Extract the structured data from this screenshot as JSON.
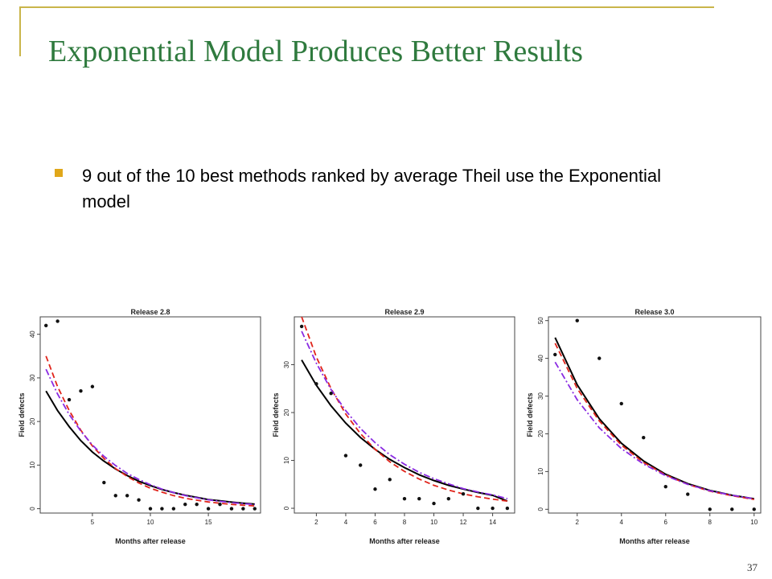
{
  "slide": {
    "title": "Exponential Model Produces Better Results",
    "bullet": "9 out of the 10 best methods ranked by average Theil use the Exponential model",
    "page_number": "37",
    "colors": {
      "title": "#2f7a3e",
      "accent": "#c9b54a",
      "bullet": "#e0a71a"
    }
  },
  "chart_data": [
    {
      "type": "scatter",
      "title": "Release 2.8",
      "xlabel": "Months after release",
      "ylabel": "Field defects",
      "xlim": [
        0.5,
        19.5
      ],
      "ylim": [
        -1,
        44
      ],
      "xticks": [
        5,
        10,
        15
      ],
      "yticks": [
        0,
        10,
        20,
        30,
        40
      ],
      "points": {
        "x": [
          1,
          2,
          3,
          4,
          5,
          6,
          7,
          8,
          9,
          10,
          11,
          12,
          13,
          14,
          15,
          16,
          17,
          18,
          19
        ],
        "y": [
          42,
          43,
          25,
          27,
          28,
          6,
          3,
          3,
          2,
          0,
          0,
          0,
          1,
          1,
          0,
          1,
          0,
          0,
          0
        ]
      },
      "curves": [
        {
          "color": "#000000",
          "style": "solid",
          "values": [
            27.0,
            22.5,
            18.8,
            15.6,
            13.0,
            10.9,
            9.1,
            7.6,
            6.3,
            5.3,
            4.4,
            3.7,
            3.1,
            2.6,
            2.1,
            1.8,
            1.5,
            1.25,
            1.05
          ]
        },
        {
          "color": "#e0241b",
          "style": "dashed",
          "values": [
            35.0,
            28.0,
            22.5,
            18.0,
            14.4,
            11.5,
            9.2,
            7.4,
            5.9,
            4.7,
            3.8,
            3.0,
            2.4,
            1.95,
            1.55,
            1.25,
            1.0,
            0.8,
            0.65
          ]
        },
        {
          "color": "#8a2be2",
          "style": "dashdot",
          "values": [
            32.0,
            26.3,
            21.6,
            17.8,
            14.6,
            12.0,
            9.9,
            8.1,
            6.7,
            5.5,
            4.5,
            3.7,
            3.0,
            2.5,
            2.05,
            1.7,
            1.4,
            1.15,
            0.95
          ]
        }
      ]
    },
    {
      "type": "scatter",
      "title": "Release 2.9",
      "xlabel": "Months after release",
      "ylabel": "Field defects",
      "xlim": [
        0.5,
        15.5
      ],
      "ylim": [
        -1,
        40
      ],
      "xticks": [
        2,
        4,
        6,
        8,
        10,
        12,
        14
      ],
      "yticks": [
        0,
        10,
        20,
        30
      ],
      "points": {
        "x": [
          1,
          2,
          3,
          4,
          5,
          6,
          7,
          8,
          9,
          10,
          11,
          12,
          13,
          14,
          15
        ],
        "y": [
          38,
          26,
          24,
          11,
          9,
          4,
          6,
          2,
          2,
          1,
          2,
          3,
          0,
          0,
          0
        ]
      },
      "curves": [
        {
          "color": "#000000",
          "style": "solid",
          "values": [
            31.0,
            25.7,
            21.4,
            17.8,
            14.8,
            12.3,
            10.2,
            8.5,
            7.0,
            5.8,
            4.8,
            4.0,
            3.3,
            2.7,
            1.5
          ]
        },
        {
          "color": "#e0241b",
          "style": "dashed",
          "values": [
            40.0,
            31.6,
            25.0,
            19.7,
            15.6,
            12.3,
            9.7,
            7.7,
            6.1,
            4.8,
            3.8,
            3.0,
            2.4,
            1.9,
            1.5
          ]
        },
        {
          "color": "#8a2be2",
          "style": "dashdot",
          "values": [
            37.0,
            30.3,
            24.8,
            20.4,
            16.7,
            13.7,
            11.2,
            9.2,
            7.5,
            6.2,
            5.1,
            4.1,
            3.4,
            2.8,
            2.0
          ]
        }
      ]
    },
    {
      "type": "scatter",
      "title": "Release 3.0",
      "xlabel": "Months after release",
      "ylabel": "Field defects",
      "xlim": [
        0.7,
        10.3
      ],
      "ylim": [
        -1,
        51
      ],
      "xticks": [
        2,
        4,
        6,
        8,
        10
      ],
      "yticks": [
        0,
        10,
        20,
        30,
        40,
        50
      ],
      "points": {
        "x": [
          1,
          2,
          3,
          4,
          5,
          6,
          7,
          8,
          9,
          10
        ],
        "y": [
          41,
          50,
          40,
          28,
          19,
          6,
          4,
          0,
          0,
          0
        ]
      },
      "curves": [
        {
          "color": "#000000",
          "style": "solid",
          "values": [
            45.5,
            33.0,
            24.0,
            17.5,
            12.8,
            9.3,
            6.8,
            5.0,
            3.7,
            2.8
          ]
        },
        {
          "color": "#e0241b",
          "style": "dashed",
          "values": [
            44.0,
            32.0,
            23.4,
            17.0,
            12.4,
            9.1,
            6.6,
            4.8,
            3.6,
            2.6
          ]
        },
        {
          "color": "#8a2be2",
          "style": "dashdot",
          "values": [
            39.0,
            29.0,
            21.6,
            16.1,
            12.0,
            8.9,
            6.6,
            4.9,
            3.7,
            2.8
          ]
        }
      ]
    }
  ]
}
